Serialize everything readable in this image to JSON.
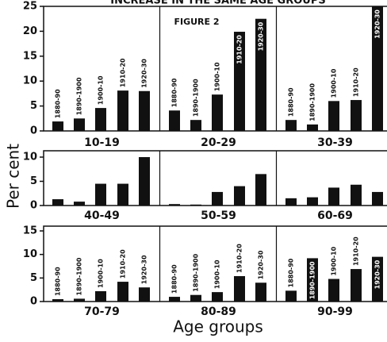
{
  "title": "INCREASE IN THE SAME AGE GROUPS",
  "annotation": "FIGURE 2",
  "ylabel": "Per cent",
  "xlabel": "Age groups",
  "chart_data": [
    {
      "type": "bar",
      "categories": [
        "10-19",
        "20-29",
        "30-39"
      ],
      "ylim": [
        0,
        25
      ],
      "yticks": [
        0,
        5,
        10,
        15,
        20,
        25
      ],
      "bar_labels": true,
      "series": [
        {
          "name": "1880-90",
          "color": "#111",
          "values": [
            1.9,
            4.1,
            2.2
          ]
        },
        {
          "name": "1890-1900",
          "color": "#111",
          "values": [
            2.5,
            2.2,
            1.3
          ]
        },
        {
          "name": "1900-10",
          "color": "#111",
          "values": [
            4.6,
            7.3,
            6.0
          ]
        },
        {
          "name": "1910-20",
          "color": "#111",
          "values": [
            8.1,
            19.9,
            6.2
          ]
        },
        {
          "name": "1920-30",
          "color": "#111",
          "values": [
            8.0,
            22.5,
            25
          ]
        }
      ]
    },
    {
      "type": "bar",
      "categories": [
        "40-49",
        "50-59",
        "60-69"
      ],
      "ylim": [
        0,
        10
      ],
      "yticks": [
        0,
        5,
        10
      ],
      "bar_labels": false,
      "series": [
        {
          "name": "1880-90",
          "color": "#111",
          "values": [
            1.3,
            0.3,
            1.5
          ]
        },
        {
          "name": "1890-1900",
          "color": "#111",
          "values": [
            0.8,
            0.2,
            1.7
          ]
        },
        {
          "name": "1900-10",
          "color": "#111",
          "values": [
            4.5,
            2.8,
            3.7
          ]
        },
        {
          "name": "1910-20",
          "color": "#111",
          "values": [
            4.5,
            4.0,
            4.3
          ]
        },
        {
          "name": "1920-30",
          "color": "#111",
          "values": [
            10,
            6.5,
            2.8
          ]
        }
      ]
    },
    {
      "type": "bar",
      "categories": [
        "70-79",
        "80-89",
        "90-99"
      ],
      "ylim": [
        0,
        15
      ],
      "yticks": [
        0,
        5,
        10,
        15
      ],
      "bar_labels": true,
      "series": [
        {
          "name": "1880-90",
          "color": "#111",
          "values": [
            0.5,
            1.0,
            2.3
          ]
        },
        {
          "name": "1890-1900",
          "color": "#111",
          "values": [
            0.6,
            1.4,
            9.2
          ]
        },
        {
          "name": "1900-10",
          "color": "#111",
          "values": [
            2.2,
            2.0,
            4.8
          ]
        },
        {
          "name": "1910-20",
          "color": "#111",
          "values": [
            4.2,
            5.4,
            6.9
          ]
        },
        {
          "name": "1920-30",
          "color": "#111",
          "values": [
            3.0,
            4.0,
            9.5
          ]
        }
      ]
    }
  ]
}
